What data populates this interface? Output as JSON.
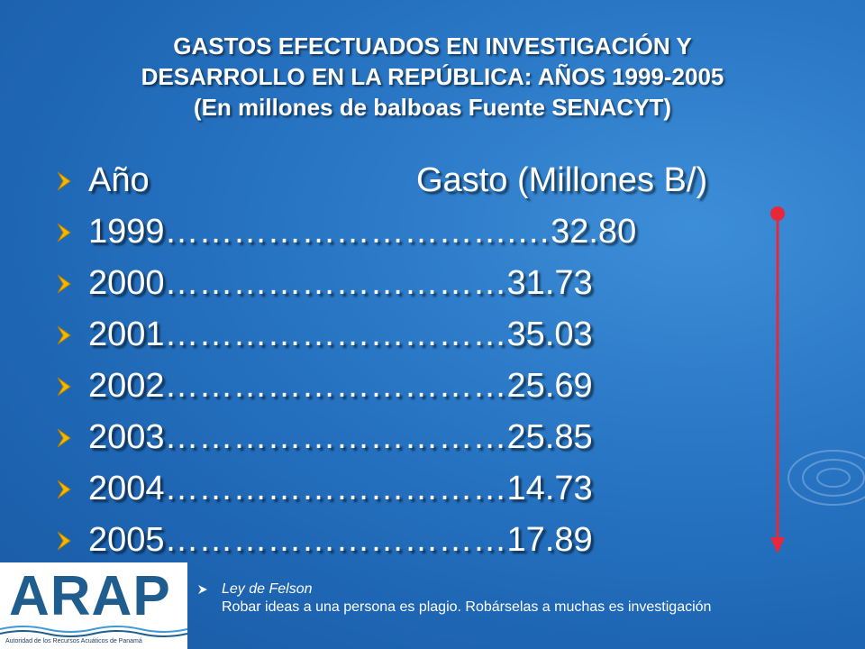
{
  "title": {
    "line1": "GASTOS EFECTUADOS EN INVESTIGACIÓN Y",
    "line2": "DESARROLLO EN LA REPÚBLICA:  AÑOS 1999-2005",
    "line3": "(En millones de balboas  Fuente SENACYT)"
  },
  "table": {
    "header_year": "Año",
    "header_value": "Gasto (Millones B/)",
    "rows": [
      {
        "year": "1999",
        "leader": " ………………………….…",
        "value": "32.80"
      },
      {
        "year": "2000",
        "leader": "…………………………",
        "value": "31.73"
      },
      {
        "year": "2001",
        "leader": "…………………………",
        "value": "35.03"
      },
      {
        "year": "2002",
        "leader": "…………………………",
        "value": "25.69"
      },
      {
        "year": "2003",
        "leader": "…………………………",
        "value": "25.85"
      },
      {
        "year": "2004",
        "leader": "…………………………",
        "value": "14.73"
      },
      {
        "year": "2005",
        "leader": "…………………………",
        "value": "17.89"
      }
    ]
  },
  "logo": {
    "text": "ARAP",
    "subtitle": "Autoridad de los Recursos Acuáticos de Panamá"
  },
  "quote": {
    "title": "Ley de Felson",
    "body": "Robar ideas a una persona es plagio. Robárselas a muchas es investigación"
  },
  "colors": {
    "background": "#2a78c6",
    "arrow": "#e8283a",
    "bullet": "#f5b800"
  }
}
